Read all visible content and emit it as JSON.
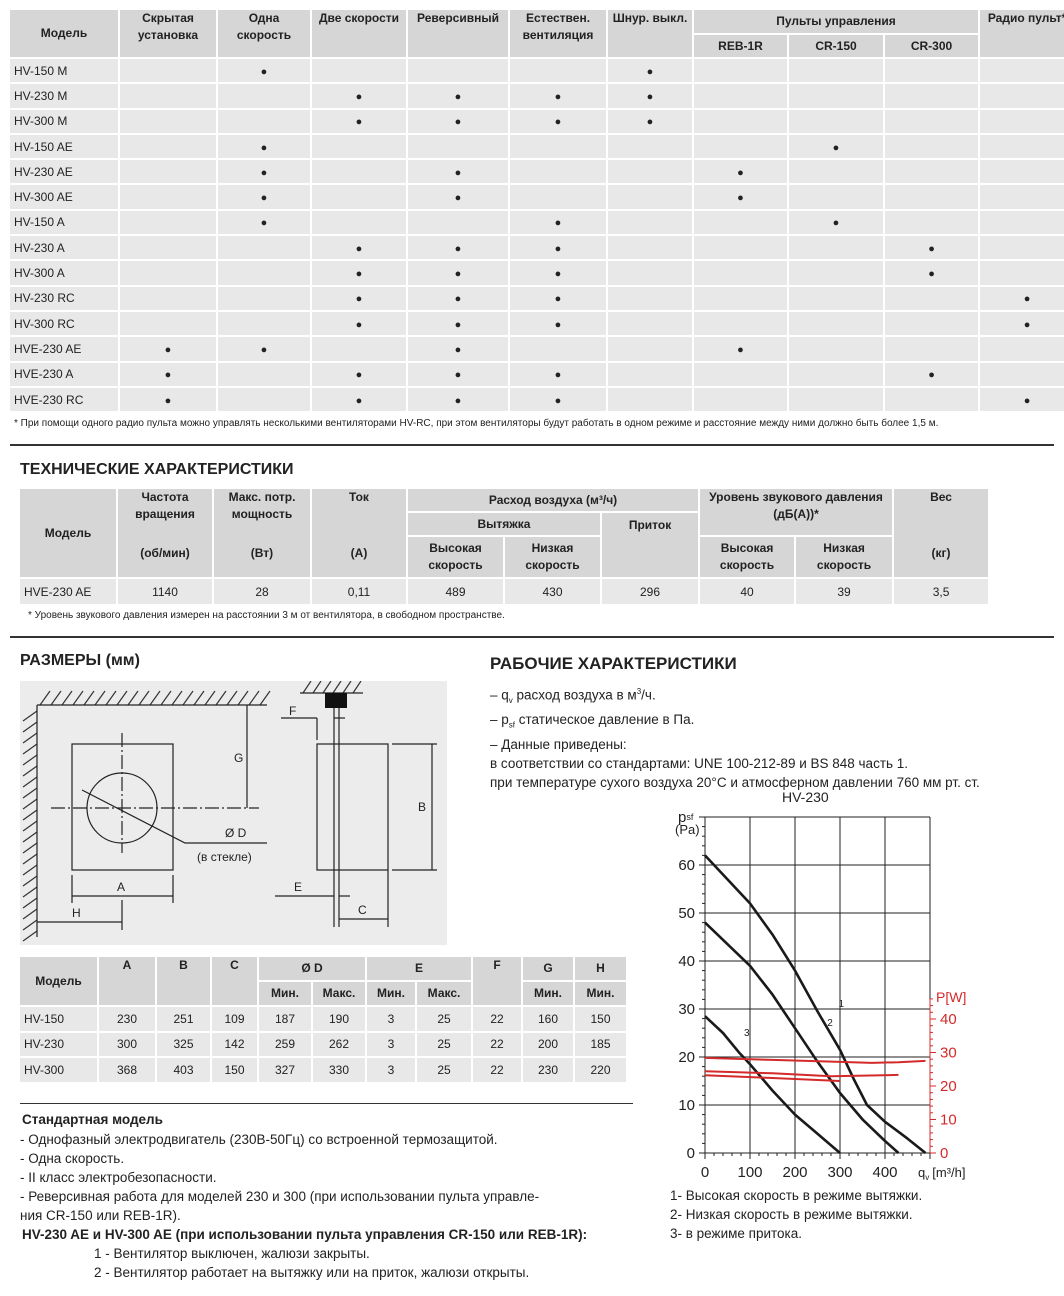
{
  "features_table": {
    "headers": {
      "model": "Модель",
      "hidden": "Скрытая установка",
      "one_speed": "Одна скорость",
      "two_speed": "Две скорости",
      "reversible": "Реверсивный",
      "natural": "Естествен. вентиляция",
      "cord": "Шнур. выкл.",
      "controls": "Пульты управления",
      "reb": "REB-1R",
      "cr150": "CR-150",
      "cr300": "CR-300",
      "radio": "Радио пульт*"
    },
    "mark": "●",
    "rows": [
      {
        "model": "HV-150 M",
        "cells": [
          0,
          1,
          0,
          0,
          0,
          1,
          0,
          0,
          0,
          0
        ]
      },
      {
        "model": "HV-230 M",
        "cells": [
          0,
          0,
          1,
          1,
          1,
          1,
          0,
          0,
          0,
          0
        ]
      },
      {
        "model": "HV-300 M",
        "cells": [
          0,
          0,
          1,
          1,
          1,
          1,
          0,
          0,
          0,
          0
        ]
      },
      {
        "model": "HV-150 AE",
        "cells": [
          0,
          1,
          0,
          0,
          0,
          0,
          0,
          1,
          0,
          0
        ]
      },
      {
        "model": "HV-230 AE",
        "cells": [
          0,
          1,
          0,
          1,
          0,
          0,
          1,
          0,
          0,
          0
        ]
      },
      {
        "model": "HV-300 AE",
        "cells": [
          0,
          1,
          0,
          1,
          0,
          0,
          1,
          0,
          0,
          0
        ]
      },
      {
        "model": "HV-150 A",
        "cells": [
          0,
          1,
          0,
          0,
          1,
          0,
          0,
          1,
          0,
          0
        ]
      },
      {
        "model": "HV-230 A",
        "cells": [
          0,
          0,
          1,
          1,
          1,
          0,
          0,
          0,
          1,
          0
        ]
      },
      {
        "model": "HV-300 A",
        "cells": [
          0,
          0,
          1,
          1,
          1,
          0,
          0,
          0,
          1,
          0
        ]
      },
      {
        "model": "HV-230 RC",
        "cells": [
          0,
          0,
          1,
          1,
          1,
          0,
          0,
          0,
          0,
          1
        ]
      },
      {
        "model": "HV-300 RC",
        "cells": [
          0,
          0,
          1,
          1,
          1,
          0,
          0,
          0,
          0,
          1
        ]
      },
      {
        "model": "HVE-230 AE",
        "cells": [
          1,
          1,
          0,
          1,
          0,
          0,
          1,
          0,
          0,
          0
        ]
      },
      {
        "model": "HVE-230 A",
        "cells": [
          1,
          0,
          1,
          1,
          1,
          0,
          0,
          0,
          1,
          0
        ]
      },
      {
        "model": "HVE-230 RC",
        "cells": [
          1,
          0,
          1,
          1,
          1,
          0,
          0,
          0,
          0,
          1
        ]
      }
    ],
    "footnote": "* При помощи одного радио пульта можно управлять несколькими вентиляторами HV-RC, при этом вентиляторы будут работать в одном режиме и расстояние между ними должно быть более 1,5 м."
  },
  "tech": {
    "title": "ТЕХНИЧЕСКИЕ ХАРАКТЕРИСТИКИ",
    "h": {
      "model": "Модель",
      "rpm": "Частота вращения",
      "rpm_u": "(об/мин)",
      "power": "Макс. потр. мощность",
      "power_u": "(Вт)",
      "current": "Ток",
      "current_u": "(А)",
      "airflow": "Расход воздуха (м³/ч)",
      "exhaust": "Вытяжка",
      "supply": "Приток",
      "high": "Высокая скорость",
      "low": "Низкая скорость",
      "sound": "Уровень звукового давления (дБ(А))*",
      "weight": "Вес",
      "weight_u": "(кг)"
    },
    "row": [
      "HVE-230 AE",
      "1140",
      "28",
      "0,11",
      "489",
      "430",
      "296",
      "40",
      "39",
      "3,5"
    ],
    "footnote": "* Уровень звукового давления измерен на расстоянии 3 м от вентилятора, в свободном пространстве."
  },
  "dims": {
    "title": "РАЗМЕРЫ (мм)",
    "drawing": {
      "D": "Ø D",
      "glass": "(в стекле)",
      "A": "A",
      "B": "B",
      "C": "C",
      "E": "E",
      "F": "F",
      "G": "G",
      "H": "H"
    },
    "h": {
      "model": "Модель",
      "A": "A",
      "B": "B",
      "C": "C",
      "D": "Ø D",
      "E": "E",
      "F": "F",
      "G": "G",
      "H": "H",
      "min": "Мин.",
      "max": "Макс."
    },
    "rows": [
      [
        "HV-150",
        "230",
        "251",
        "109",
        "187",
        "190",
        "3",
        "25",
        "22",
        "160",
        "150"
      ],
      [
        "HV-230",
        "300",
        "325",
        "142",
        "259",
        "262",
        "3",
        "25",
        "22",
        "200",
        "185"
      ],
      [
        "HV-300",
        "368",
        "403",
        "150",
        "327",
        "330",
        "3",
        "25",
        "22",
        "230",
        "220"
      ]
    ]
  },
  "standard": {
    "title": "Стандартная модель",
    "items": [
      "- Однофазный электродвигатель (230В-50Гц) со встроенной термозащитой.",
      "- Одна скорость.",
      "- II класс электробезопасности.",
      "- Реверсивная работа для моделей 230 и 300 (при использовании пульта управле-",
      "ния CR-150 или REB-1R)."
    ],
    "ae_title": "HV-230 AE и HV-300 AE (при использовании пульта управления CR-150 или REB-1R):",
    "ae_items": [
      "1 - Вентилятор выключен, жалюзи закрыты.",
      "2 - Вентилятор работает на вытяжку или на приток, жалюзи открыты."
    ]
  },
  "perf": {
    "title": "РАБОЧИЕ ХАРАКТЕРИСТИКИ",
    "l1a": "– q",
    "l1s": "v",
    "l1b": " расход воздуха в м",
    "l1sup": "3",
    "l1c": "/ч.",
    "l2a": "– p",
    "l2s": "sf",
    "l2b": " статическое давление в Па.",
    "l3": "– Данные приведены:",
    "l4": "в соответствии со стандартами: UNE 100-212-89 и BS 848 часть 1.",
    "l5": "при температуре сухого воздуха 20°C и атмосферном давлении 760 мм рт. ст.",
    "legend": [
      "1- Высокая скорость в режиме вытяжки.",
      "2- Низкая скорость в режиме вытяжки.",
      "3- в режиме притока."
    ]
  },
  "chart_data": {
    "type": "line",
    "title": "HV-230",
    "ylabel": "psf (Pa)",
    "ylabel_main": "p",
    "ylabel_sub": "sf",
    "ylabel_unit": "(Pa)",
    "y2label": "P[W]",
    "xlabel_main": "q",
    "xlabel_sub": "v",
    "xlabel_unit": "[m³/h]",
    "xlim": [
      0,
      500
    ],
    "ylim": [
      0,
      70
    ],
    "y2lim": [
      0,
      50
    ],
    "xticks": [
      0,
      100,
      200,
      300,
      400
    ],
    "yticks": [
      0,
      10,
      20,
      30,
      40,
      50,
      60
    ],
    "y2ticks": [
      0,
      10,
      20,
      30,
      40
    ],
    "grid": true,
    "colors": {
      "pressure": "#1a1a1a",
      "power": "#d42a2a"
    },
    "series": [
      {
        "name": "1",
        "axis": "left",
        "points": [
          [
            0,
            62
          ],
          [
            50,
            57
          ],
          [
            100,
            52
          ],
          [
            150,
            45.5
          ],
          [
            200,
            38
          ],
          [
            250,
            29.5
          ],
          [
            300,
            21.5
          ],
          [
            330,
            15.5
          ],
          [
            360,
            10
          ],
          [
            400,
            6.5
          ],
          [
            450,
            3
          ],
          [
            490,
            0
          ]
        ]
      },
      {
        "name": "2",
        "axis": "left",
        "points": [
          [
            0,
            48
          ],
          [
            50,
            43.5
          ],
          [
            100,
            39
          ],
          [
            150,
            33
          ],
          [
            200,
            26
          ],
          [
            250,
            19
          ],
          [
            300,
            12.5
          ],
          [
            350,
            7
          ],
          [
            400,
            2.5
          ],
          [
            430,
            0
          ]
        ]
      },
      {
        "name": "3",
        "axis": "left",
        "points": [
          [
            0,
            28.5
          ],
          [
            40,
            25
          ],
          [
            75,
            21
          ],
          [
            100,
            18.5
          ],
          [
            150,
            13
          ],
          [
            200,
            8
          ],
          [
            250,
            4
          ],
          [
            300,
            0
          ]
        ]
      },
      {
        "axis": "right",
        "points": [
          [
            0,
            28.4
          ],
          [
            150,
            27.8
          ],
          [
            300,
            27.2
          ],
          [
            370,
            26.9
          ],
          [
            430,
            27.1
          ],
          [
            490,
            27.5
          ]
        ]
      },
      {
        "axis": "right",
        "points": [
          [
            0,
            24.4
          ],
          [
            150,
            23.8
          ],
          [
            280,
            22.9
          ],
          [
            430,
            23.3
          ]
        ]
      },
      {
        "axis": "right",
        "points": [
          [
            0,
            23.2
          ],
          [
            150,
            22.4
          ],
          [
            300,
            21.5
          ]
        ]
      }
    ]
  }
}
